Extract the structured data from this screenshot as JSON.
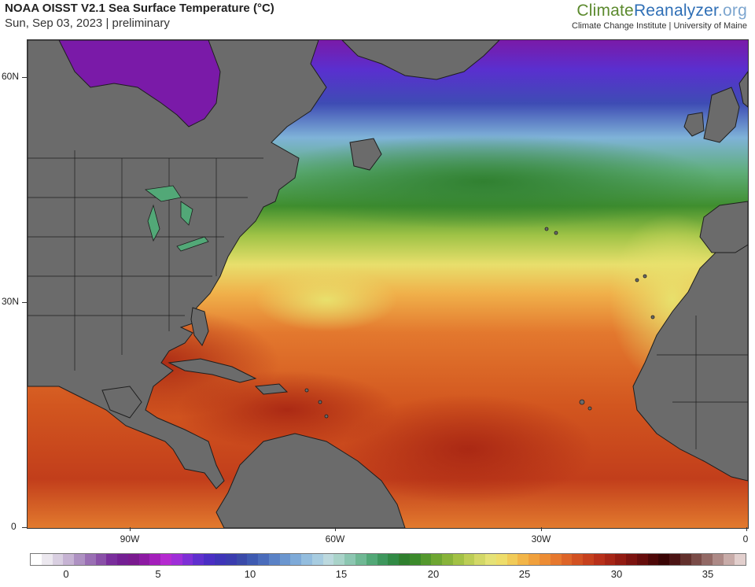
{
  "header": {
    "title": "NOAA OISST V2.1 Sea Surface Temperature (°C)",
    "subtitle": "Sun, Sep 03, 2023 | preliminary",
    "brand_part1": "Climate",
    "brand_part2": "Reanalyzer",
    "brand_part3": ".org",
    "institution": "Climate Change Institute | University of Maine"
  },
  "map": {
    "y_ticks": [
      "60N",
      "30N",
      "0"
    ],
    "x_ticks": [
      "90W",
      "60W",
      "30W",
      "0"
    ],
    "land_color": "#6b6b6b",
    "border_color": "#1e1e1e"
  },
  "colorbar": {
    "labels": [
      "0",
      "5",
      "10",
      "15",
      "20",
      "25",
      "30",
      "35"
    ],
    "colors": [
      "#ffffff",
      "#ece8ef",
      "#d9cfe1",
      "#c6b3d3",
      "#ae91c2",
      "#9a6fb4",
      "#8a50a8",
      "#7a2e9c",
      "#741f93",
      "#7a1a8f",
      "#8d1aa3",
      "#a41fbb",
      "#b52ad0",
      "#9f2ed8",
      "#7e2fd6",
      "#5f2fce",
      "#4a2ec4",
      "#3e34b8",
      "#3a3caf",
      "#3a4aa9",
      "#3e5ab1",
      "#4a6cbb",
      "#5a82c6",
      "#6b96cf",
      "#7eaad8",
      "#93bdde",
      "#a7cce0",
      "#bcd9de",
      "#a9d3c9",
      "#8cc6b1",
      "#6fb894",
      "#52a877",
      "#3e975d",
      "#318a45",
      "#2f7f2e",
      "#3c8a2b",
      "#54982d",
      "#6ea632",
      "#88b33a",
      "#a2c145",
      "#bccd55",
      "#d3d867",
      "#e5e276",
      "#eedd6a",
      "#f1cb58",
      "#f2b548",
      "#f0a03c",
      "#ec8c34",
      "#e6782e",
      "#dd6428",
      "#d25122",
      "#c6401d",
      "#b8301a",
      "#a62516",
      "#921b12",
      "#7c130f",
      "#660d0c",
      "#4e0808",
      "#3a0505",
      "#4b1414",
      "#62302c",
      "#7a4c48",
      "#936a66",
      "#ad8a87",
      "#c8aca9",
      "#e2cfcd"
    ]
  }
}
